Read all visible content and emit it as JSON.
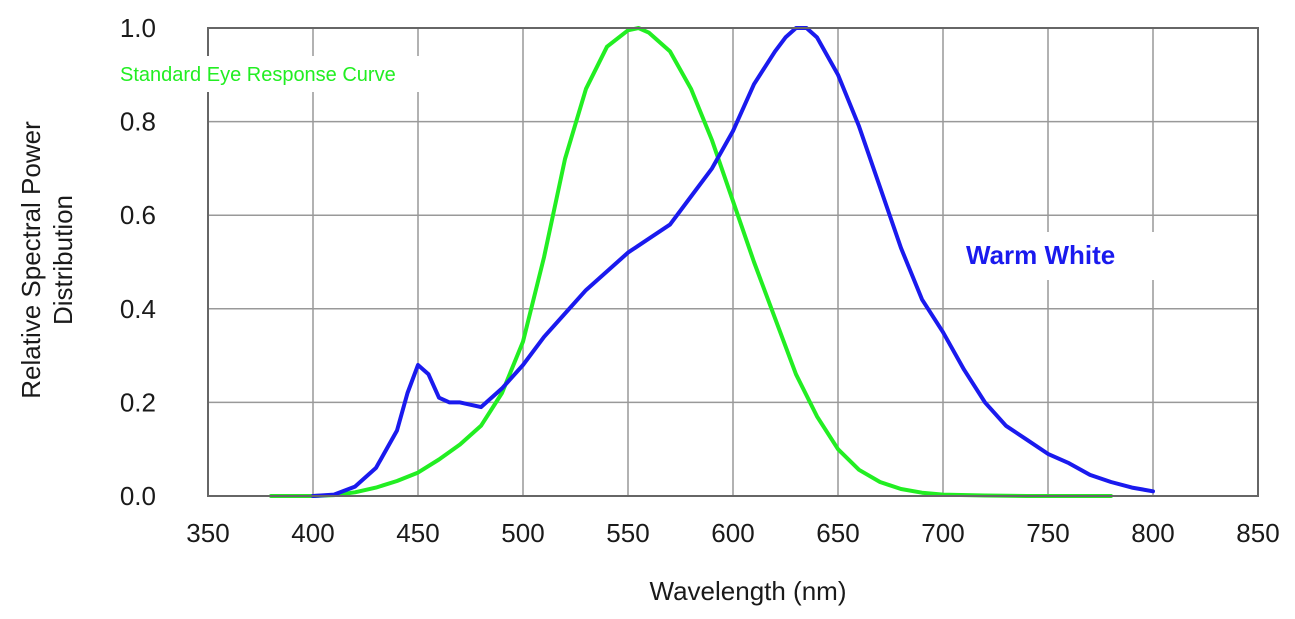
{
  "chart_data": {
    "type": "line",
    "xlabel": "Wavelength (nm)",
    "ylabel_lines": [
      "Relative Spectral Power",
      "Distribution"
    ],
    "xlim": [
      350,
      850
    ],
    "ylim": [
      0,
      1.0
    ],
    "x_ticks": [
      350,
      400,
      450,
      500,
      550,
      600,
      650,
      700,
      750,
      800,
      850
    ],
    "x_tick_labels": [
      "350",
      "400",
      "450",
      "500",
      "550",
      "600",
      "650",
      "700",
      "750",
      "800",
      "850"
    ],
    "y_ticks": [
      0,
      0.2,
      0.4,
      0.6,
      0.8,
      1.0
    ],
    "y_tick_labels": [
      "0.0",
      "0.2",
      "0.4",
      "0.6",
      "0.8",
      "1.0"
    ],
    "grid": true,
    "annotations": [
      {
        "text": "Standard Eye Response Curve",
        "color": "#22ee22"
      },
      {
        "text": "Warm White",
        "color": "#1a1aee"
      }
    ],
    "series": [
      {
        "color": "#22ee22",
        "x": [
          380,
          400,
          410,
          420,
          430,
          440,
          450,
          460,
          470,
          480,
          490,
          500,
          510,
          520,
          530,
          540,
          550,
          555,
          560,
          570,
          580,
          590,
          600,
          610,
          620,
          630,
          640,
          650,
          660,
          670,
          680,
          690,
          700,
          720,
          740,
          760,
          780
        ],
        "y": [
          0.0,
          0.0,
          0.002,
          0.008,
          0.018,
          0.032,
          0.05,
          0.078,
          0.11,
          0.15,
          0.22,
          0.33,
          0.51,
          0.72,
          0.87,
          0.96,
          0.995,
          1.0,
          0.99,
          0.95,
          0.87,
          0.76,
          0.63,
          0.5,
          0.38,
          0.26,
          0.17,
          0.1,
          0.056,
          0.03,
          0.015,
          0.007,
          0.003,
          0.001,
          0.0,
          0.0,
          0.0
        ]
      },
      {
        "color": "#1a1aee",
        "x": [
          400,
          410,
          420,
          430,
          440,
          445,
          450,
          455,
          460,
          465,
          470,
          480,
          490,
          500,
          510,
          520,
          530,
          540,
          550,
          560,
          570,
          580,
          590,
          600,
          610,
          620,
          625,
          630,
          635,
          640,
          650,
          660,
          670,
          680,
          690,
          700,
          710,
          720,
          730,
          740,
          750,
          760,
          770,
          780,
          790,
          800
        ],
        "y": [
          0.0,
          0.003,
          0.02,
          0.06,
          0.14,
          0.22,
          0.28,
          0.26,
          0.21,
          0.2,
          0.2,
          0.19,
          0.23,
          0.28,
          0.34,
          0.39,
          0.44,
          0.48,
          0.52,
          0.55,
          0.58,
          0.64,
          0.7,
          0.78,
          0.88,
          0.95,
          0.98,
          1.0,
          1.0,
          0.98,
          0.9,
          0.79,
          0.66,
          0.53,
          0.42,
          0.35,
          0.27,
          0.2,
          0.15,
          0.12,
          0.09,
          0.07,
          0.045,
          0.03,
          0.018,
          0.01
        ]
      }
    ]
  }
}
